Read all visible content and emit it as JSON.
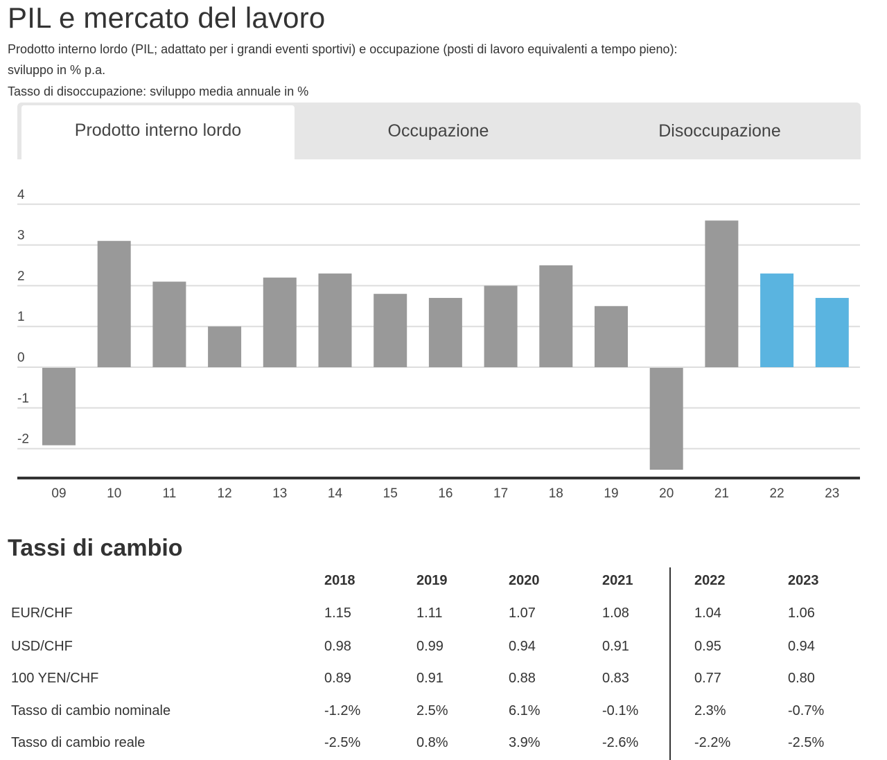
{
  "header": {
    "title": "PIL e mercato del lavoro",
    "subtitle_line1": "Prodotto interno lordo (PIL; adattato per i grandi eventi sportivi) e occupazione (posti di lavoro equivalenti a tempo pieno):",
    "subtitle_line2": "sviluppo in % p.a.",
    "subtitle_line3": "Tasso di disoccupazione: sviluppo media annuale in %"
  },
  "tabs": [
    {
      "label": "Prodotto interno lordo",
      "active": true
    },
    {
      "label": "Occupazione",
      "active": false
    },
    {
      "label": "Disoccupazione",
      "active": false
    }
  ],
  "chart_data": {
    "type": "bar",
    "categories": [
      "09",
      "10",
      "11",
      "12",
      "13",
      "14",
      "15",
      "16",
      "17",
      "18",
      "19",
      "20",
      "21",
      "22",
      "23"
    ],
    "values": [
      -1.9,
      3.1,
      2.1,
      1.0,
      2.2,
      2.3,
      1.8,
      1.7,
      2.0,
      2.5,
      1.5,
      -2.5,
      3.6,
      2.3,
      1.7
    ],
    "forecast": [
      false,
      false,
      false,
      false,
      false,
      false,
      false,
      false,
      false,
      false,
      false,
      false,
      false,
      true,
      true
    ],
    "ylim": [
      -2.7,
      4
    ],
    "yticks": [
      4,
      3,
      2,
      1,
      0,
      -1,
      -2
    ],
    "ytick_labels": [
      "4",
      "3",
      "2",
      "1",
      "0",
      "-1",
      "-2"
    ],
    "grid": true,
    "colors": {
      "actual": "#999999",
      "forecast": "#5ab4e0",
      "grid": "#dddddd",
      "baseline": "#333333"
    }
  },
  "exchange_rates": {
    "title": "Tassi di cambio",
    "years": [
      "2018",
      "2019",
      "2020",
      "2021",
      "2022",
      "2023"
    ],
    "rows": [
      {
        "label": "EUR/CHF",
        "values": [
          "1.15",
          "1.11",
          "1.07",
          "1.08",
          "1.04",
          "1.06"
        ]
      },
      {
        "label": "USD/CHF",
        "values": [
          "0.98",
          "0.99",
          "0.94",
          "0.91",
          "0.95",
          "0.94"
        ]
      },
      {
        "label": "100 YEN/CHF",
        "values": [
          "0.89",
          "0.91",
          "0.88",
          "0.83",
          "0.77",
          "0.80"
        ]
      },
      {
        "label": "Tasso di cambio nominale",
        "values": [
          "-1.2%",
          "2.5%",
          "6.1%",
          "-0.1%",
          "2.3%",
          "-0.7%"
        ]
      },
      {
        "label": "Tasso di cambio reale",
        "values": [
          "-2.5%",
          "0.8%",
          "3.9%",
          "-2.6%",
          "-2.2%",
          "-2.5%"
        ]
      }
    ]
  }
}
